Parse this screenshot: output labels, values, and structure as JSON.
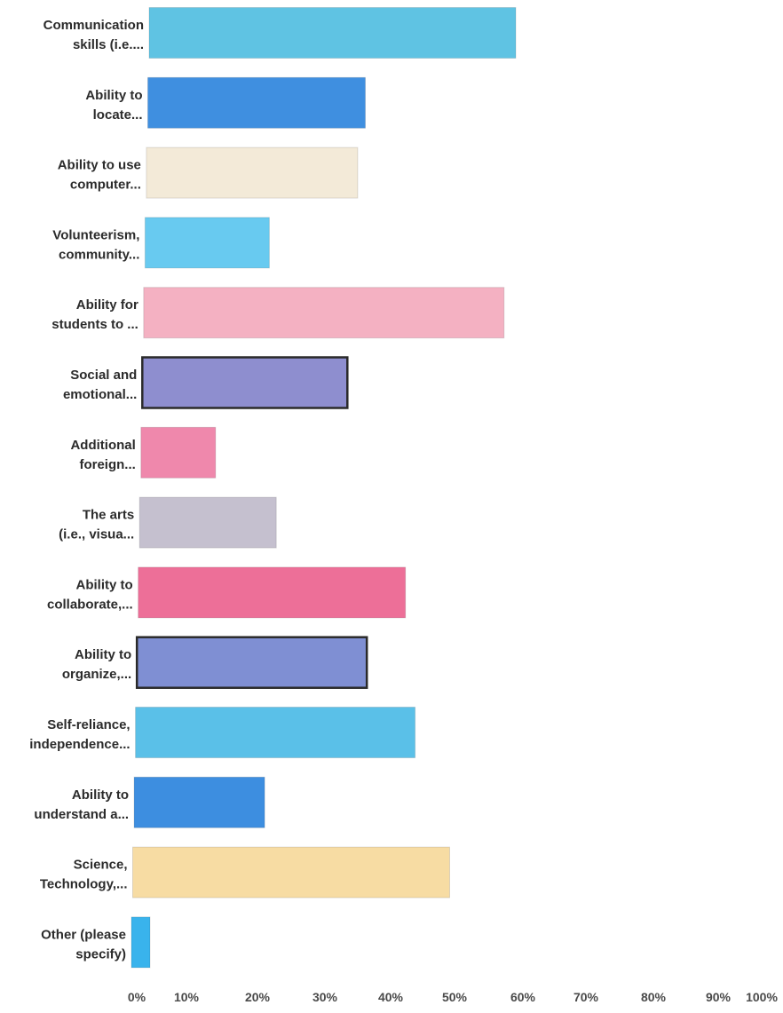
{
  "chart_data": {
    "type": "bar",
    "orientation": "horizontal",
    "title": "",
    "xlabel": "",
    "ylabel": "",
    "xlim": [
      0,
      100
    ],
    "grid": false,
    "legend": "none",
    "x_ticks": [
      "0%",
      "10%",
      "20%",
      "30%",
      "40%",
      "50%",
      "60%",
      "70%",
      "80%",
      "90%",
      "100%"
    ],
    "categories": [
      [
        "Communication",
        "skills (i.e...."
      ],
      [
        "Ability to",
        "locate..."
      ],
      [
        "Ability to use",
        "computer..."
      ],
      [
        "Volunteerism,",
        "community..."
      ],
      [
        "Ability for",
        "students to ..."
      ],
      [
        "Social and",
        "emotional..."
      ],
      [
        "Additional",
        "foreign..."
      ],
      [
        "The arts",
        "(i.e., visua..."
      ],
      [
        "Ability to",
        "collaborate,..."
      ],
      [
        "Ability to",
        "organize,..."
      ],
      [
        "Self-reliance,",
        "independence..."
      ],
      [
        "Ability to",
        "understand a..."
      ],
      [
        "Science,",
        "Technology,..."
      ],
      [
        "Other (please",
        "specify)"
      ]
    ],
    "values": [
      59,
      35,
      34,
      20,
      58,
      33,
      12,
      22,
      43,
      37,
      45,
      21,
      51,
      3
    ],
    "colors": [
      "#5fc3e3",
      "#3f8fe0",
      "#f3ead8",
      "#68caf0",
      "#f4b1c2",
      "#8e8ecf",
      "#ef88ac",
      "#c5c0cf",
      "#ed6f98",
      "#7f8fd3",
      "#5ac0e8",
      "#3d8ee0",
      "#f7dca3",
      "#39b3ec"
    ],
    "outlined": [
      false,
      false,
      false,
      false,
      false,
      true,
      false,
      false,
      false,
      true,
      false,
      false,
      false,
      false
    ]
  }
}
